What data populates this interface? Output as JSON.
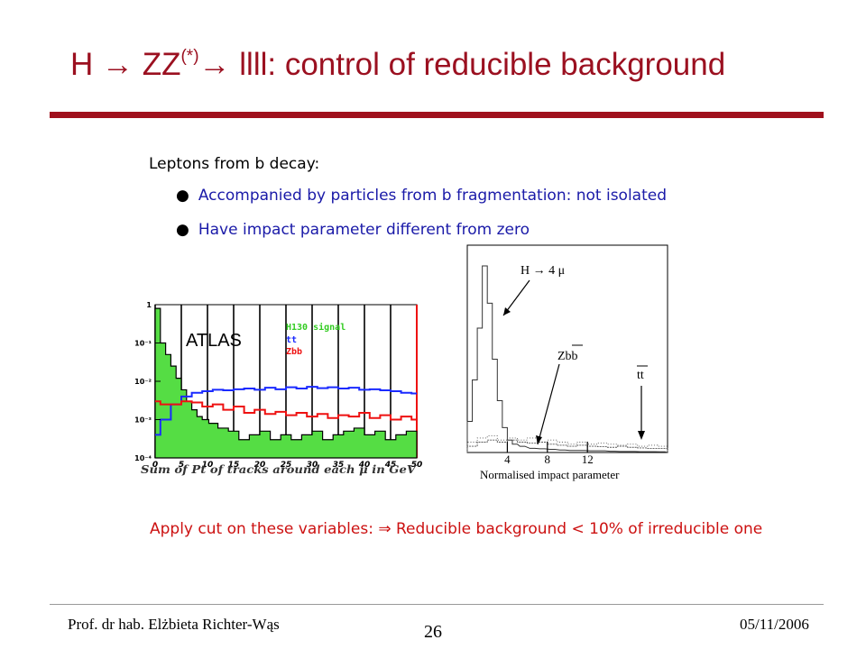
{
  "title": {
    "prefix": "H → ZZ",
    "sup": "(*)",
    "suffix": "→ llll: control of reducible background"
  },
  "intro": "Leptons from b decay:",
  "bullets": [
    "Accompanied by particles from b fragmentation: not isolated",
    "Have impact parameter different from zero"
  ],
  "conclusion": "Apply cut on these variables: ⇒ Reducible background < 10% of irreducible one",
  "footer": {
    "author": "Prof. dr hab. Elżbieta Richter-Wąs",
    "page": "26",
    "date": "05/11/2006"
  },
  "colors": {
    "title": "#9b1020",
    "rule": "#a0101d",
    "bullet_text": "#1a1aa8",
    "conclusion": "#cc1111",
    "signal_fill": "#55dd44",
    "tt": "#1a2aff",
    "zbb": "#ee1111"
  },
  "chart_data": [
    {
      "type": "line",
      "title": "",
      "label": "ATLAS",
      "xlabel": "Sum of Pt of tracks around each μ in GeV",
      "ylabel": "",
      "x_ticks": [
        "0",
        "5",
        "10",
        "15",
        "20",
        "25",
        "30",
        "35",
        "40",
        "45",
        "50"
      ],
      "y_ticks": [
        "1",
        "10⁻¹",
        "10⁻²",
        "10⁻³",
        "10⁻⁴"
      ],
      "log_y": true,
      "legend": [
        "H130 signal",
        "tt",
        "Zbb"
      ],
      "legend_placement": "top-right",
      "xlim": [
        0,
        50
      ],
      "ylim": [
        0.0001,
        1
      ],
      "series": [
        {
          "name": "H130 signal",
          "x": [
            0.5,
            1.5,
            2.5,
            3.5,
            4.5,
            5.5,
            6.5,
            7.5,
            8.5,
            9.5,
            11,
            13,
            15,
            17,
            19,
            21,
            23,
            25,
            27,
            29,
            31,
            33,
            35,
            37,
            39,
            41,
            43,
            45,
            47,
            49
          ],
          "y": [
            0.8,
            0.1,
            0.05,
            0.025,
            0.012,
            0.006,
            0.003,
            0.0018,
            0.0012,
            0.001,
            0.0008,
            0.0006,
            0.0005,
            0.0003,
            0.0004,
            0.0005,
            0.0003,
            0.0004,
            0.0003,
            0.0004,
            0.0005,
            0.0003,
            0.0004,
            0.0005,
            0.0006,
            0.0004,
            0.0005,
            0.0003,
            0.0004,
            0.0005
          ]
        },
        {
          "name": "tt",
          "x": [
            0,
            2,
            4,
            6,
            8,
            10,
            12,
            14,
            16,
            18,
            20,
            22,
            24,
            26,
            28,
            30,
            32,
            34,
            36,
            38,
            40,
            42,
            44,
            46,
            48,
            50
          ],
          "y": [
            0.0004,
            0.001,
            0.0025,
            0.004,
            0.005,
            0.0055,
            0.006,
            0.0058,
            0.0062,
            0.0065,
            0.006,
            0.0068,
            0.0062,
            0.007,
            0.0065,
            0.0072,
            0.0066,
            0.007,
            0.0065,
            0.0068,
            0.006,
            0.0062,
            0.0058,
            0.0055,
            0.005,
            0.0048
          ]
        },
        {
          "name": "Zbb",
          "x": [
            0,
            2,
            4,
            6,
            8,
            10,
            12,
            14,
            16,
            18,
            20,
            22,
            24,
            26,
            28,
            30,
            32,
            34,
            36,
            38,
            40,
            42,
            44,
            46,
            48,
            50
          ],
          "y": [
            0.003,
            0.0025,
            0.0025,
            0.003,
            0.0028,
            0.0022,
            0.0025,
            0.0018,
            0.0022,
            0.0015,
            0.0018,
            0.0014,
            0.0016,
            0.0013,
            0.0015,
            0.0012,
            0.0014,
            0.0011,
            0.0013,
            0.0012,
            0.0015,
            0.0011,
            0.0013,
            0.001,
            0.0012,
            0.001
          ]
        }
      ]
    },
    {
      "type": "line",
      "title": "",
      "xlabel": "Normalised impact parameter",
      "ylabel": "",
      "x_ticks": [
        "4",
        "8",
        "12"
      ],
      "xlim": [
        0,
        20
      ],
      "annotations": [
        "H → 4 μ",
        "Zbb",
        "tt"
      ],
      "series": [
        {
          "name": "H → 4 μ",
          "x": [
            0.25,
            0.75,
            1.25,
            1.75,
            2.25,
            2.75,
            3.25,
            3.75,
            4.25,
            4.75,
            5.5,
            6.5,
            7.5,
            8.5,
            9.5,
            10.5,
            11.5,
            12.5,
            13.5,
            14.5,
            15.5,
            16.5,
            17.5,
            18.5,
            19.5
          ],
          "y": [
            0.15,
            0.35,
            0.6,
            0.9,
            0.72,
            0.45,
            0.25,
            0.12,
            0.06,
            0.04,
            0.03,
            0.02,
            0.018,
            0.015,
            0.012,
            0.01,
            0.01,
            0.008,
            0.008,
            0.006,
            0.005,
            0.005,
            0.004,
            0.004,
            0.003
          ]
        },
        {
          "name": "Zbb",
          "x": [
            0.5,
            1.5,
            2.5,
            3.5,
            4.5,
            5.5,
            6.5,
            7.5,
            8.5,
            9.5,
            10.5,
            11.5,
            12.5,
            13.5,
            14.5,
            15.5,
            16.5,
            17.5,
            18.5,
            19.5
          ],
          "y": [
            0.03,
            0.05,
            0.06,
            0.05,
            0.06,
            0.05,
            0.045,
            0.05,
            0.04,
            0.035,
            0.03,
            0.035,
            0.03,
            0.028,
            0.025,
            0.03,
            0.025,
            0.022,
            0.02,
            0.02
          ]
        },
        {
          "name": "tt",
          "x": [
            0.5,
            1.5,
            2.5,
            3.5,
            4.5,
            5.5,
            6.5,
            7.5,
            8.5,
            9.5,
            10.5,
            11.5,
            12.5,
            13.5,
            14.5,
            15.5,
            16.5,
            17.5,
            18.5,
            19.5
          ],
          "y": [
            0.05,
            0.07,
            0.08,
            0.06,
            0.07,
            0.06,
            0.07,
            0.05,
            0.06,
            0.05,
            0.04,
            0.05,
            0.04,
            0.045,
            0.04,
            0.035,
            0.04,
            0.03,
            0.035,
            0.03
          ]
        }
      ]
    }
  ]
}
